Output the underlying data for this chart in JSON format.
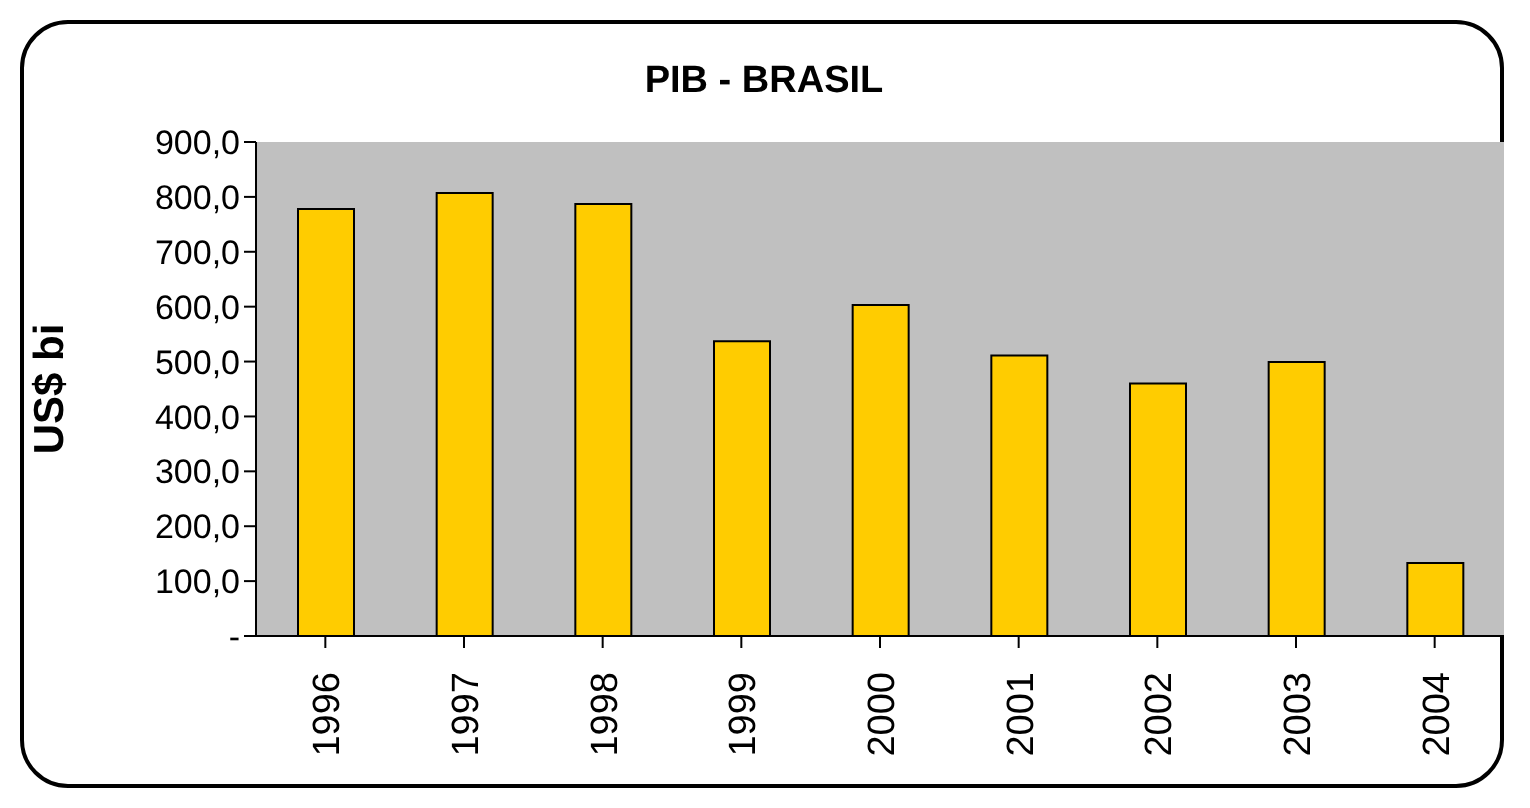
{
  "chart_data": {
    "type": "bar",
    "title": "PIB - BRASIL",
    "ylabel": "US$ bi",
    "categories": [
      "1996",
      "1997",
      "1998",
      "1999",
      "2000",
      "2001",
      "2002",
      "2003",
      "2004"
    ],
    "values": [
      778,
      807,
      787,
      537,
      603,
      511,
      460,
      499,
      133
    ],
    "color": "#ffcc00",
    "ylim": [
      0,
      900
    ],
    "yticks": [
      {
        "value": 0,
        "label": "-"
      },
      {
        "value": 100,
        "label": "100,0"
      },
      {
        "value": 200,
        "label": "200,0"
      },
      {
        "value": 300,
        "label": "300,0"
      },
      {
        "value": 400,
        "label": "400,0"
      },
      {
        "value": 500,
        "label": "500,0"
      },
      {
        "value": 600,
        "label": "600,0"
      },
      {
        "value": 700,
        "label": "700,0"
      },
      {
        "value": 800,
        "label": "800,0"
      },
      {
        "value": 900,
        "label": "900,0"
      }
    ],
    "grid": false,
    "legend": false
  }
}
